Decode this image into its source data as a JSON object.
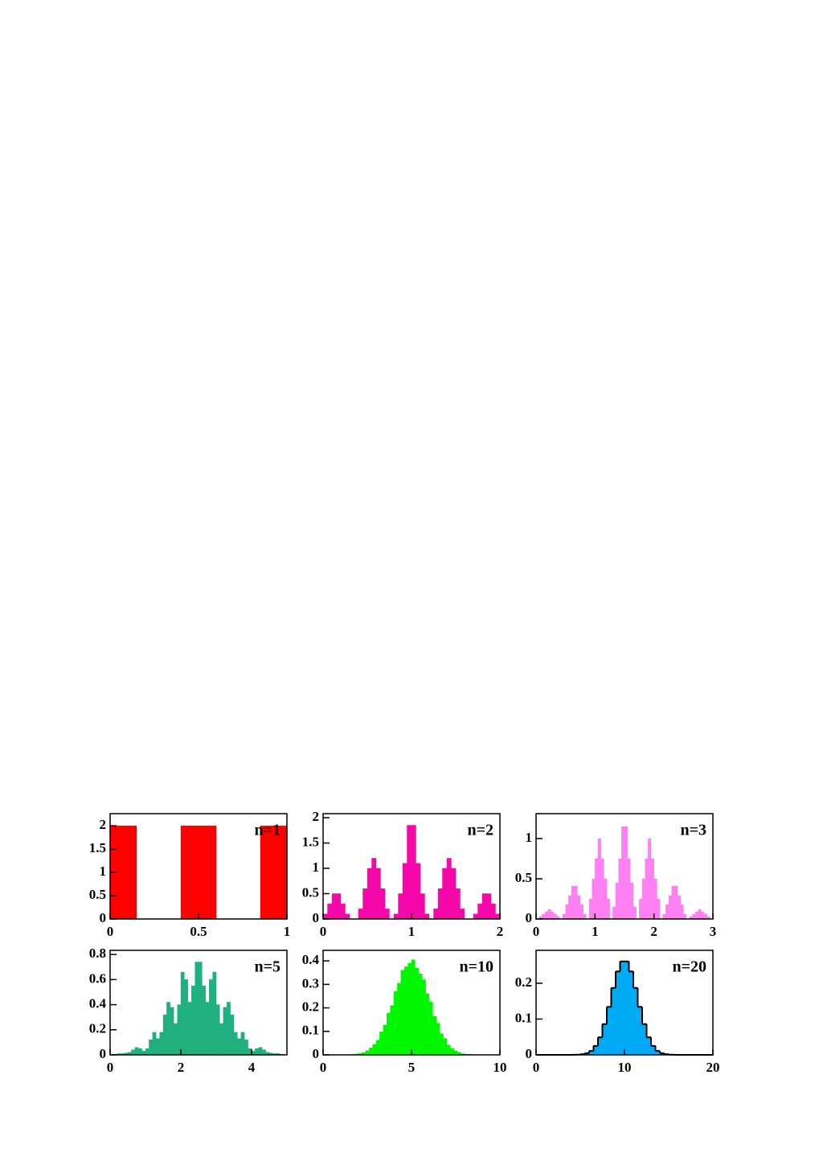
{
  "chart_data": [
    {
      "type": "histogram",
      "label": "n=1",
      "color": "#ff0000",
      "bins": [
        0,
        0.05,
        0.1,
        0.15,
        0.2,
        0.25,
        0.3,
        0.35,
        0.4,
        0.45,
        0.5,
        0.55,
        0.6,
        0.65,
        0.7,
        0.75,
        0.8,
        0.85,
        0.9,
        0.95,
        1
      ],
      "values": [
        2,
        2,
        2,
        0,
        0,
        0,
        0,
        0,
        2,
        2,
        2,
        2,
        0,
        0,
        0,
        0,
        0,
        2,
        2,
        2
      ],
      "xlim": [
        0,
        1
      ],
      "ylim": [
        0,
        2.26
      ],
      "xticks": [
        0,
        0.5,
        1
      ],
      "yticks": [
        0,
        0.5,
        1,
        1.5,
        2
      ]
    },
    {
      "type": "histogram",
      "label": "n=2",
      "color": "#f507a8",
      "bins": [
        0,
        0.05,
        0.1,
        0.15,
        0.2,
        0.25,
        0.3,
        0.35,
        0.4,
        0.45,
        0.5,
        0.55,
        0.6,
        0.65,
        0.7,
        0.75,
        0.8,
        0.85,
        0.9,
        0.95,
        1,
        1.05,
        1.1,
        1.15,
        1.2,
        1.25,
        1.3,
        1.35,
        1.4,
        1.45,
        1.5,
        1.55,
        1.6,
        1.65,
        1.7,
        1.75,
        1.8,
        1.85,
        1.9,
        1.95,
        2
      ],
      "values": [
        0.1,
        0.3,
        0.5,
        0.5,
        0.3,
        0.1,
        0,
        0,
        0.2,
        0.6,
        1.0,
        1.2,
        1.0,
        0.6,
        0.2,
        0,
        0.1,
        0.5,
        1.1,
        1.85,
        1.85,
        1.1,
        0.5,
        0.1,
        0,
        0.2,
        0.6,
        1.0,
        1.2,
        1.0,
        0.6,
        0.2,
        0,
        0,
        0.1,
        0.3,
        0.5,
        0.5,
        0.3,
        0.1
      ],
      "xlim": [
        0,
        2
      ],
      "ylim": [
        0,
        2.08
      ],
      "xticks": [
        0,
        1,
        2
      ],
      "yticks": [
        0,
        0.5,
        1,
        1.5,
        2
      ]
    },
    {
      "type": "histogram",
      "label": "n=3",
      "color": "#ff80f2",
      "bins": [
        0,
        0.05,
        0.1,
        0.15,
        0.2,
        0.25,
        0.3,
        0.35,
        0.4,
        0.45,
        0.5,
        0.55,
        0.6,
        0.65,
        0.7,
        0.75,
        0.8,
        0.85,
        0.9,
        0.95,
        1,
        1.05,
        1.1,
        1.15,
        1.2,
        1.25,
        1.3,
        1.35,
        1.4,
        1.45,
        1.5,
        1.55,
        1.6,
        1.65,
        1.7,
        1.75,
        1.8,
        1.85,
        1.9,
        1.95,
        2,
        2.05,
        2.1,
        2.15,
        2.2,
        2.25,
        2.3,
        2.35,
        2.4,
        2.45,
        2.5,
        2.55,
        2.6,
        2.65,
        2.7,
        2.75,
        2.8,
        2.85,
        2.9,
        2.95,
        3
      ],
      "values": [
        0,
        0.03,
        0.06,
        0.09,
        0.12,
        0.09,
        0.06,
        0.03,
        0,
        0.06,
        0.18,
        0.29,
        0.41,
        0.41,
        0.29,
        0.18,
        0.06,
        0,
        0.25,
        0.5,
        0.75,
        1.0,
        0.75,
        0.5,
        0.25,
        0,
        0.15,
        0.45,
        0.75,
        1.15,
        1.15,
        0.75,
        0.45,
        0.15,
        0,
        0.25,
        0.5,
        0.75,
        1.0,
        0.75,
        0.5,
        0.25,
        0,
        0.06,
        0.18,
        0.29,
        0.41,
        0.41,
        0.29,
        0.18,
        0.06,
        0,
        0.03,
        0.06,
        0.09,
        0.12,
        0.09,
        0.06,
        0.03,
        0
      ],
      "xlim": [
        0,
        3
      ],
      "ylim": [
        0,
        1.31
      ],
      "xticks": [
        0,
        1,
        2,
        3
      ],
      "yticks": [
        0,
        0.5,
        1
      ]
    },
    {
      "type": "histogram",
      "label": "n=5",
      "color": "#20b07e",
      "bins": [
        0,
        0.1,
        0.2,
        0.3,
        0.4,
        0.5,
        0.6,
        0.7,
        0.8,
        0.9,
        1,
        1.1,
        1.2,
        1.3,
        1.4,
        1.5,
        1.6,
        1.7,
        1.8,
        1.9,
        2,
        2.1,
        2.2,
        2.3,
        2.4,
        2.5,
        2.6,
        2.7,
        2.8,
        2.9,
        3,
        3.1,
        3.2,
        3.3,
        3.4,
        3.5,
        3.6,
        3.7,
        3.8,
        3.9,
        4,
        4.1,
        4.2,
        4.3,
        4.4,
        4.5,
        4.6,
        4.7,
        4.8,
        4.9,
        5
      ],
      "values": [
        0,
        0.005,
        0.01,
        0.01,
        0.015,
        0.02,
        0.04,
        0.06,
        0.05,
        0.03,
        0.05,
        0.12,
        0.18,
        0.13,
        0.18,
        0.32,
        0.42,
        0.38,
        0.25,
        0.4,
        0.66,
        0.6,
        0.42,
        0.55,
        0.74,
        0.74,
        0.55,
        0.42,
        0.6,
        0.66,
        0.4,
        0.25,
        0.38,
        0.42,
        0.32,
        0.18,
        0.13,
        0.18,
        0.12,
        0.05,
        0.03,
        0.05,
        0.06,
        0.04,
        0.02,
        0.015,
        0.01,
        0.01,
        0.005,
        0
      ],
      "xlim": [
        0,
        5
      ],
      "ylim": [
        0,
        0.833
      ],
      "xticks": [
        0,
        2,
        4
      ],
      "yticks": [
        0,
        0.2,
        0.4,
        0.6,
        0.8
      ]
    },
    {
      "type": "histogram",
      "label": "n=10",
      "color": "#00f700",
      "bins": [
        0,
        0.2,
        0.4,
        0.6,
        0.8,
        1,
        1.2,
        1.4,
        1.6,
        1.8,
        2,
        2.2,
        2.4,
        2.6,
        2.8,
        3,
        3.2,
        3.4,
        3.6,
        3.8,
        4,
        4.2,
        4.4,
        4.6,
        4.8,
        5,
        5.2,
        5.4,
        5.6,
        5.8,
        6,
        6.2,
        6.4,
        6.6,
        6.8,
        7,
        7.2,
        7.4,
        7.6,
        7.8,
        8,
        8.2,
        8.4,
        8.6,
        8.8,
        9,
        9.2,
        9.4,
        9.6,
        9.8,
        10
      ],
      "values": [
        0,
        0,
        0,
        0,
        0,
        0,
        0,
        0.001,
        0.002,
        0.003,
        0.006,
        0.01,
        0.018,
        0.03,
        0.045,
        0.062,
        0.098,
        0.127,
        0.178,
        0.21,
        0.27,
        0.305,
        0.36,
        0.375,
        0.39,
        0.405,
        0.37,
        0.345,
        0.32,
        0.26,
        0.225,
        0.165,
        0.135,
        0.09,
        0.07,
        0.042,
        0.027,
        0.017,
        0.011,
        0.005,
        0.003,
        0.002,
        0.001,
        0,
        0,
        0,
        0,
        0,
        0,
        0
      ],
      "xlim": [
        0,
        10
      ],
      "ylim": [
        0,
        0.445
      ],
      "xticks": [
        0,
        5,
        10
      ],
      "yticks": [
        0,
        0.1,
        0.2,
        0.3,
        0.4
      ]
    },
    {
      "type": "histogram",
      "label": "n=20",
      "color": "#00aaf5",
      "outline": "#000000",
      "bins": [
        0,
        0.5,
        1,
        1.5,
        2,
        2.5,
        3,
        3.5,
        4,
        4.5,
        5,
        5.5,
        6,
        6.5,
        7,
        7.5,
        8,
        8.5,
        9,
        9.5,
        10,
        10.5,
        11,
        11.5,
        12,
        12.5,
        13,
        13.5,
        14,
        14.5,
        15,
        15.5,
        16,
        16.5,
        17,
        17.5,
        18,
        18.5,
        19,
        19.5,
        20
      ],
      "values": [
        0,
        0,
        0,
        0,
        0,
        0,
        0,
        0,
        0.0002,
        0.0006,
        0.0018,
        0.0047,
        0.011,
        0.025,
        0.049,
        0.086,
        0.134,
        0.187,
        0.233,
        0.261,
        0.261,
        0.233,
        0.187,
        0.134,
        0.086,
        0.049,
        0.025,
        0.011,
        0.0047,
        0.0018,
        0.0006,
        0.0002,
        0,
        0,
        0,
        0,
        0,
        0,
        0,
        0
      ],
      "xlim": [
        0,
        20
      ],
      "ylim": [
        0,
        0.292
      ],
      "xticks": [
        0,
        10,
        20
      ],
      "yticks": [
        0,
        0.1,
        0.2
      ]
    }
  ]
}
